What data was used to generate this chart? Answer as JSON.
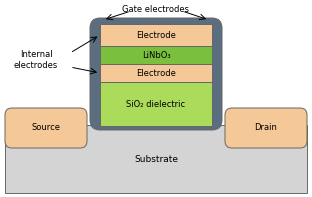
{
  "fig_width": 3.12,
  "fig_height": 1.97,
  "dpi": 100,
  "bg_color": "#ffffff",
  "substrate_color": "#d4d4d4",
  "source_drain_color": "#f5c897",
  "gate_shell_color": "#5a6e80",
  "electrode_color": "#f5c897",
  "linbo3_color": "#7bbf3e",
  "sio2_color": "#aadb5a",
  "outline_color": "#666666",
  "text_color": "#000000",
  "substrate_label": "Substrate",
  "source_label": "Source",
  "drain_label": "Drain",
  "electrode_top_label": "Electrode",
  "linbo3_label": "LiNbO₃",
  "electrode_bot_label": "Electrode",
  "sio2_label": "SiO₂ dielectric",
  "gate_label": "Gate electrodes",
  "internal_label": "Internal\nelectrodes"
}
